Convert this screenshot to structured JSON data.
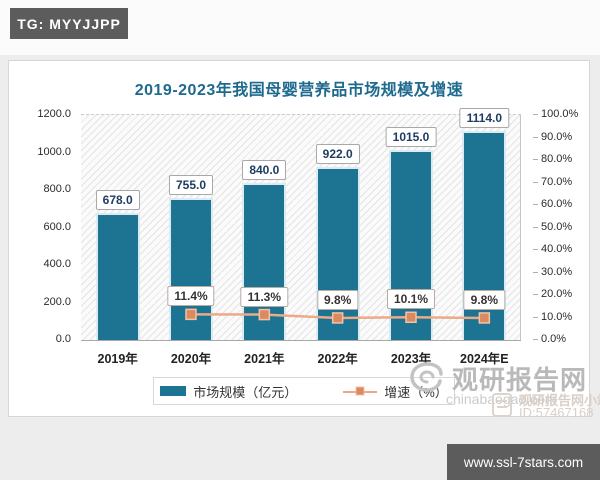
{
  "badge": {
    "text": "TG: MYYJJPP"
  },
  "footer_bar": {
    "text": "www.ssl-7stars.com"
  },
  "watermark": {
    "brand": "观研报告网",
    "url": "chinabaogao.com",
    "overlay_name": "观研报告网小站",
    "overlay_id": "ID:57467168"
  },
  "chart_data": {
    "type": "bar",
    "title": "2019-2023年我国母婴营养品市场规模及增速",
    "categories": [
      "2019年",
      "2020年",
      "2021年",
      "2022年",
      "2023年",
      "2024年E"
    ],
    "series": [
      {
        "name": "市场规模（亿元）",
        "type": "bar",
        "axis": "left",
        "values": [
          678.0,
          755.0,
          840.0,
          922.0,
          1015.0,
          1114.0
        ]
      },
      {
        "name": "增速（%）",
        "type": "line",
        "axis": "right",
        "values": [
          null,
          11.4,
          11.3,
          9.8,
          10.1,
          9.8
        ]
      }
    ],
    "bar_labels": [
      "678.0",
      "755.0",
      "840.0",
      "922.0",
      "1015.0",
      "1114.0"
    ],
    "line_labels": [
      null,
      "11.4%",
      "11.3%",
      "9.8%",
      "10.1%",
      "9.8%"
    ],
    "left_axis": {
      "min": 0,
      "max": 1200,
      "step": 200,
      "labels": [
        "1200.0",
        "1000.0",
        "800.0",
        "600.0",
        "400.0",
        "200.0",
        "0.0"
      ]
    },
    "right_axis": {
      "min": 0,
      "max": 100,
      "step": 10,
      "labels": [
        "100.0%",
        "90.0%",
        "80.0%",
        "70.0%",
        "60.0%",
        "50.0%",
        "40.0%",
        "30.0%",
        "20.0%",
        "10.0%",
        "0.0%"
      ]
    },
    "legend": [
      {
        "label": "市场规模（亿元）",
        "type": "bar"
      },
      {
        "label": "增速（%）",
        "type": "line"
      }
    ],
    "colors": {
      "bar": "#1d7392",
      "line": "#ecaa88",
      "marker_fill": "#da8a5e",
      "marker_border": "#f2c3a6",
      "title": "#1d6a8e"
    },
    "grid": false,
    "legend_position": "bottom"
  }
}
